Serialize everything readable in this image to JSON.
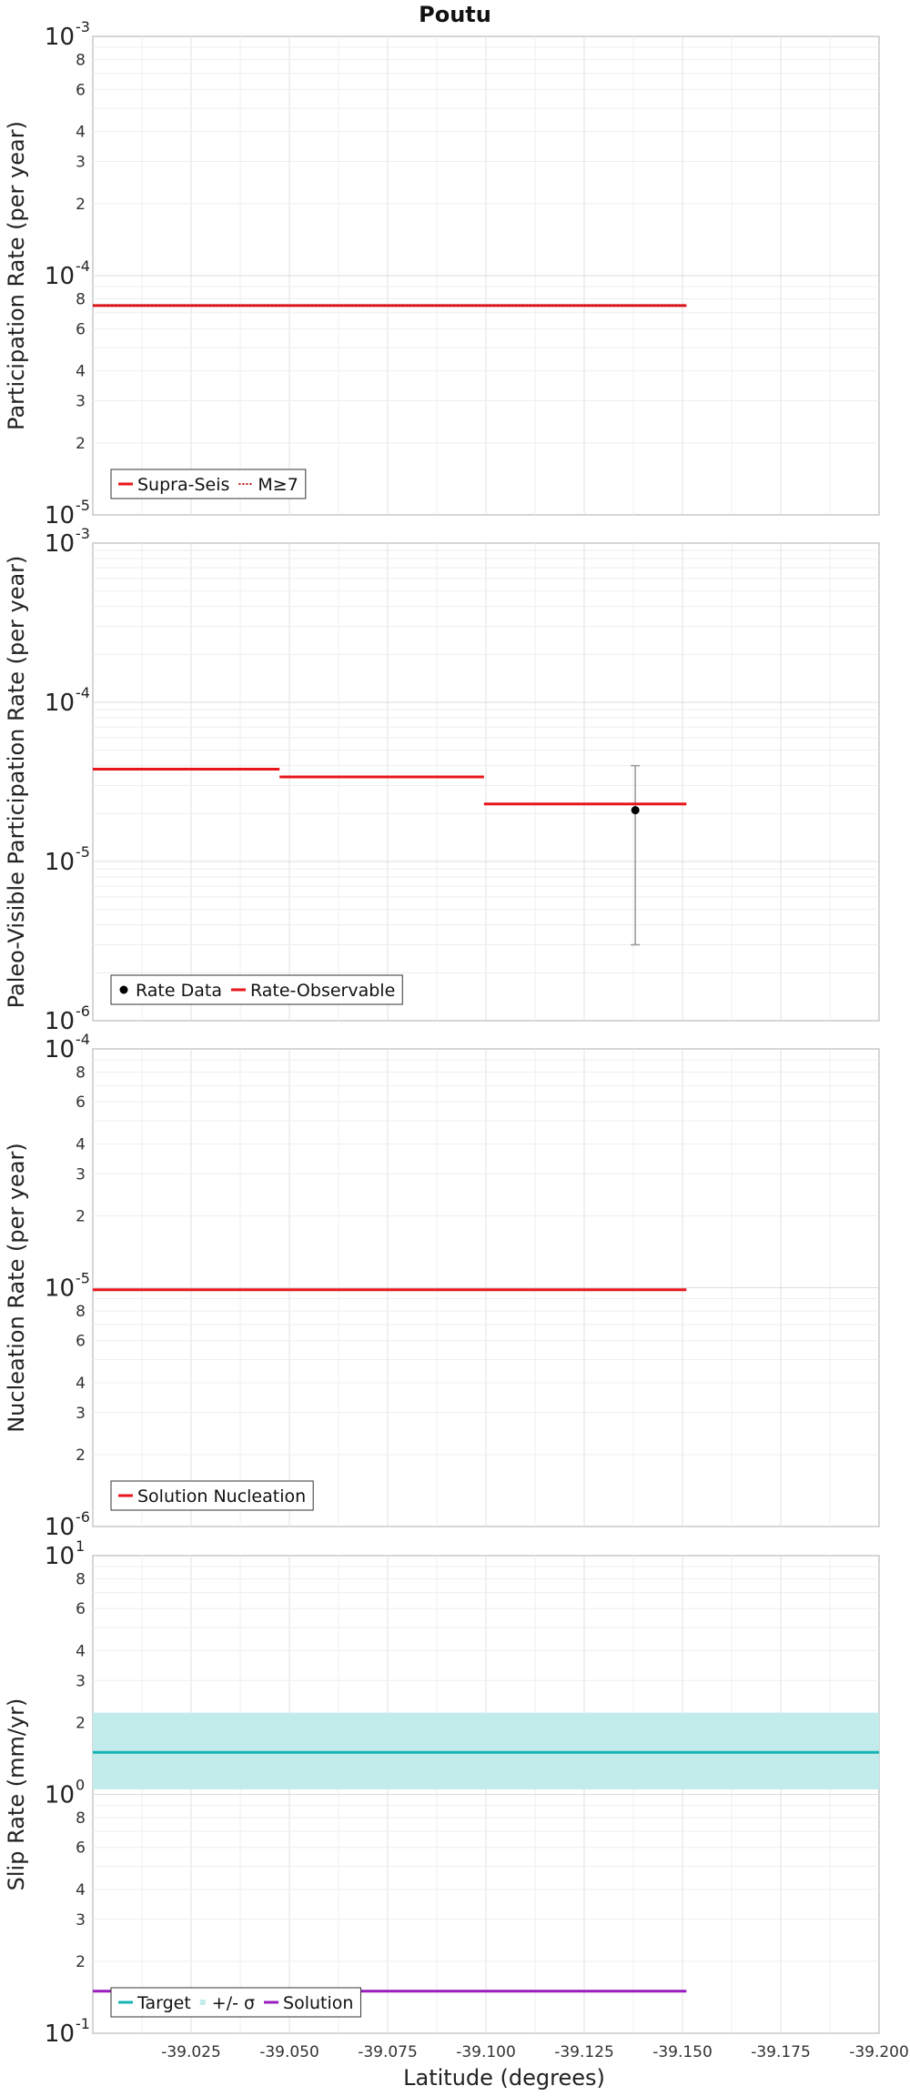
{
  "chart_data": {
    "title": "Poutu",
    "xlabel": "Latitude (degrees)",
    "x_axis": {
      "reversed": true,
      "range": [
        -39.0,
        -39.2
      ],
      "ticks": [
        -39.025,
        -39.05,
        -39.075,
        -39.1,
        -39.125,
        -39.15,
        -39.175,
        -39.2
      ],
      "tick_labels": [
        "-39.025",
        "-39.050",
        "-39.075",
        "-39.100",
        "-39.125",
        "-39.150",
        "-39.175",
        "-39.200"
      ]
    },
    "panels": [
      {
        "type": "line",
        "ylabel": "Participation Rate (per year)",
        "yscale": "log",
        "ylim": [
          1e-05,
          0.001
        ],
        "decades": [
          {
            "base": "10",
            "exp": "-5"
          },
          {
            "base": "10",
            "exp": "-4"
          },
          {
            "base": "10",
            "exp": "-3"
          }
        ],
        "minor_labels": [
          "2",
          "3",
          "4",
          "6",
          "8"
        ],
        "series": [
          {
            "name": "Supra-Seis",
            "color": "#e8161b",
            "style": "solid",
            "segments": [
              {
                "x0": -39.0,
                "x1": -39.151,
                "y": 7.5e-05
              }
            ]
          },
          {
            "name": "M≥7",
            "color": "#c0101a",
            "style": "dotted",
            "segments": [
              {
                "x0": -39.0,
                "x1": -39.151,
                "y": 7.5e-05
              }
            ]
          }
        ],
        "legend": {
          "position": "bottom-left"
        }
      },
      {
        "type": "line",
        "ylabel": "Paleo-Visible Participation Rate (per year)",
        "yscale": "log",
        "ylim": [
          1e-06,
          0.001
        ],
        "decades": [
          {
            "base": "10",
            "exp": "-6"
          },
          {
            "base": "10",
            "exp": "-5"
          },
          {
            "base": "10",
            "exp": "-4"
          },
          {
            "base": "10",
            "exp": "-3"
          }
        ],
        "minor_labels": [],
        "series": [
          {
            "name": "Rate Data",
            "color": "#000000",
            "style": "point",
            "points": [
              {
                "x": -39.138,
                "y": 2.1e-05,
                "err_low": 3e-06,
                "err_high": 4e-05
              }
            ]
          },
          {
            "name": "Rate-Observable",
            "color": "#e8161b",
            "style": "solid",
            "segments": [
              {
                "x0": -39.0,
                "x1": -39.0475,
                "y": 3.8e-05
              },
              {
                "x0": -39.0475,
                "x1": -39.0995,
                "y": 3.4e-05
              },
              {
                "x0": -39.0995,
                "x1": -39.151,
                "y": 2.3e-05
              }
            ]
          }
        ],
        "legend": {
          "position": "bottom-left"
        }
      },
      {
        "type": "line",
        "ylabel": "Nucleation Rate (per year)",
        "yscale": "log",
        "ylim": [
          1e-06,
          0.0001
        ],
        "decades": [
          {
            "base": "10",
            "exp": "-6"
          },
          {
            "base": "10",
            "exp": "-5"
          },
          {
            "base": "10",
            "exp": "-4"
          }
        ],
        "minor_labels": [
          "2",
          "3",
          "4",
          "6",
          "8"
        ],
        "series": [
          {
            "name": "Solution Nucleation",
            "color": "#e8161b",
            "style": "solid",
            "segments": [
              {
                "x0": -39.0,
                "x1": -39.151,
                "y": 9.8e-06
              }
            ]
          }
        ],
        "legend": {
          "position": "bottom-left"
        }
      },
      {
        "type": "area",
        "ylabel": "Slip Rate (mm/yr)",
        "yscale": "log",
        "ylim": [
          0.1,
          10
        ],
        "decades": [
          {
            "base": "10",
            "exp": "-1"
          },
          {
            "base": "10",
            "exp": "0"
          },
          {
            "base": "10",
            "exp": "1"
          }
        ],
        "minor_labels": [
          "2",
          "3",
          "4",
          "6",
          "8"
        ],
        "series": [
          {
            "name": "Target",
            "color": "#17b3b3",
            "style": "solid",
            "segments": [
              {
                "x0": -39.0,
                "x1": -39.2,
                "y": 1.5
              }
            ]
          },
          {
            "name": "+/- σ",
            "color": "#c2ecec",
            "style": "band",
            "band": {
              "x0": -39.0,
              "x1": -39.2,
              "low": 1.05,
              "high": 2.2
            }
          },
          {
            "name": "Solution",
            "color": "#9a1dbd",
            "style": "solid",
            "segments": [
              {
                "x0": -39.0,
                "x1": -39.151,
                "y": 0.15
              }
            ]
          }
        ],
        "legend": {
          "position": "bottom-left"
        }
      }
    ]
  }
}
